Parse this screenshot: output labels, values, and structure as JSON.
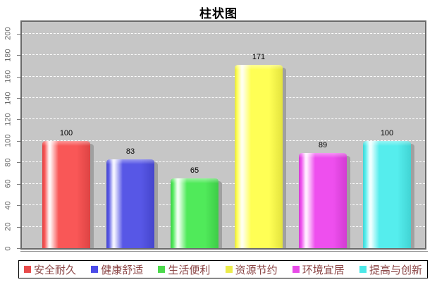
{
  "chart_data": {
    "type": "bar",
    "title": "柱状图",
    "categories": [
      "安全耐久",
      "健康舒适",
      "生活便利",
      "资源节约",
      "环境宜居",
      "提高与创新"
    ],
    "values": [
      100,
      83,
      65,
      171,
      89,
      100
    ],
    "series": [
      {
        "name": "安全耐久",
        "value": 100,
        "main": "#f95757",
        "dark": "#dd4343",
        "light": "#fff4f4",
        "legend_color": "#e84b4b"
      },
      {
        "name": "健康舒适",
        "value": 83,
        "main": "#5757e6",
        "dark": "#4545cc",
        "light": "#f1f1ff",
        "legend_color": "#4b4be8"
      },
      {
        "name": "生活便利",
        "value": 65,
        "main": "#50ea5a",
        "dark": "#3ecc48",
        "light": "#effff0",
        "legend_color": "#4bd94b"
      },
      {
        "name": "资源节约",
        "value": 171,
        "main": "#ffff55",
        "dark": "#e3e33e",
        "light": "#ffffee",
        "legend_color": "#ecec4b"
      },
      {
        "name": "环境宜居",
        "value": 89,
        "main": "#ee4fee",
        "dark": "#d23cd2",
        "light": "#ffecff",
        "legend_color": "#e84be8"
      },
      {
        "name": "提高与创新",
        "value": 100,
        "main": "#55eded",
        "dark": "#41d4d4",
        "light": "#eeffff",
        "legend_color": "#4be8e8"
      }
    ],
    "xlabel": "",
    "ylabel": "",
    "yticks": [
      0,
      20,
      40,
      60,
      80,
      100,
      120,
      140,
      160,
      180,
      200
    ],
    "ylim": [
      0,
      211
    ],
    "grid": "horizontal white dashed on gray plot background",
    "legend_position": "bottom boxed",
    "value_labels_shown": true,
    "plot_bg_color": "#c6c6c6",
    "grid_color": "#ffffff",
    "legend_text_color": "#8b4545",
    "axis_tick_color": "#666666",
    "bar_shadow_color": "#a0a0a0"
  }
}
